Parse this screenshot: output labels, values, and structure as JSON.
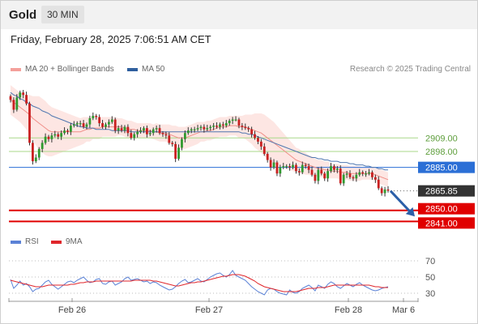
{
  "header": {
    "symbol": "Gold",
    "interval": "30 MIN",
    "datetime": "Friday, February 28, 2025 7:06:51 AM CET"
  },
  "legend": {
    "items": [
      {
        "label": "MA 20 + Bollinger Bands",
        "color": "#f4a09b"
      },
      {
        "label": "MA 50",
        "color": "#2f5f9e"
      }
    ],
    "credit": "Research © 2025 Trading Central"
  },
  "rsi_legend": {
    "items": [
      {
        "label": "RSI",
        "color": "#5b82d6"
      },
      {
        "label": "9MA",
        "color": "#e0262b"
      }
    ]
  },
  "chart_data": [
    {
      "type": "candlestick",
      "title": "",
      "xlabel": "",
      "ylabel": "",
      "ylim": [
        2830,
        2958
      ],
      "x_ticks": [
        "Feb 26",
        "Feb 27",
        "Feb 28",
        "Mar 6"
      ],
      "levels": [
        {
          "value": 2909.0,
          "label": "2909.00",
          "kind": "resistance",
          "color": "#8fca6a"
        },
        {
          "value": 2898.0,
          "label": "2898.00",
          "kind": "resistance",
          "color": "#8fca6a"
        },
        {
          "value": 2885.0,
          "label": "2885.00",
          "kind": "pivot",
          "color": "#2b6fd6"
        },
        {
          "value": 2865.85,
          "label": "2865.85",
          "kind": "last",
          "color": "#333333"
        },
        {
          "value": 2850.0,
          "label": "2850.00",
          "kind": "support",
          "color": "#e00000"
        },
        {
          "value": 2841.0,
          "label": "2841.00",
          "kind": "support",
          "color": "#e00000"
        }
      ],
      "series": [
        {
          "name": "price",
          "close": [
            2940,
            2932,
            2942,
            2946,
            2944,
            2937,
            2905,
            2890,
            2893,
            2900,
            2905,
            2910,
            2908,
            2911,
            2912,
            2910,
            2913,
            2915,
            2914,
            2919,
            2920,
            2921,
            2921,
            2918,
            2920,
            2925,
            2927,
            2926,
            2921,
            2918,
            2920,
            2922,
            2924,
            2915,
            2917,
            2915,
            2918,
            2913,
            2909,
            2912,
            2914,
            2915,
            2917,
            2912,
            2913,
            2916,
            2917,
            2913,
            2912,
            2911,
            2905,
            2904,
            2892,
            2901,
            2908,
            2913,
            2915,
            2916,
            2916,
            2917,
            2918,
            2916,
            2917,
            2918,
            2919,
            2918,
            2920,
            2919,
            2921,
            2923,
            2924,
            2924,
            2919,
            2918,
            2917,
            2916,
            2912,
            2909,
            2906,
            2902,
            2896,
            2891,
            2885,
            2889,
            2880,
            2885,
            2886,
            2886,
            2885,
            2887,
            2882,
            2881,
            2887,
            2886,
            2883,
            2879,
            2874,
            2883,
            2880,
            2876,
            2882,
            2886,
            2883,
            2884,
            2872,
            2879,
            2880,
            2877,
            2876,
            2879,
            2881,
            2880,
            2880,
            2881,
            2877,
            2875,
            2868,
            2864,
            2867,
            2866
          ]
        },
        {
          "name": "MA 20",
          "values": [
            2940,
            2938,
            2936,
            2934,
            2932,
            2930,
            2928,
            2925,
            2923,
            2921,
            2919,
            2917,
            2915,
            2914,
            2914,
            2914,
            2914,
            2914,
            2914,
            2914,
            2914,
            2914,
            2914,
            2915,
            2916,
            2916,
            2917,
            2917,
            2917,
            2918,
            2918,
            2918,
            2918,
            2918,
            2918,
            2918,
            2917,
            2916,
            2916,
            2916,
            2915,
            2915,
            2915,
            2915,
            2915,
            2914,
            2914,
            2913,
            2913,
            2913,
            2912,
            2911,
            2910,
            2909,
            2909,
            2909,
            2910,
            2911,
            2912,
            2913,
            2914,
            2914,
            2915,
            2915,
            2916,
            2917,
            2918,
            2918,
            2918,
            2919,
            2919,
            2919,
            2918,
            2918,
            2918,
            2917,
            2916,
            2915,
            2914,
            2913,
            2911,
            2909,
            2907,
            2905,
            2903,
            2901,
            2899,
            2897,
            2895,
            2893,
            2891,
            2890,
            2889,
            2888,
            2887,
            2886,
            2885,
            2884,
            2884,
            2883,
            2883,
            2882,
            2882,
            2882,
            2881,
            2881,
            2881,
            2880,
            2880,
            2880,
            2880,
            2880,
            2880,
            2880,
            2880,
            2879,
            2878,
            2877,
            2876,
            2875
          ]
        },
        {
          "name": "MA 50",
          "values": [
            2946,
            2944,
            2943,
            2941,
            2940,
            2938,
            2937,
            2935,
            2934,
            2933,
            2931,
            2930,
            2929,
            2927,
            2926,
            2925,
            2924,
            2923,
            2922,
            2921,
            2920,
            2919,
            2918,
            2918,
            2917,
            2917,
            2917,
            2916,
            2916,
            2916,
            2916,
            2916,
            2915,
            2915,
            2915,
            2915,
            2915,
            2915,
            2914,
            2914,
            2914,
            2914,
            2914,
            2914,
            2914,
            2914,
            2914,
            2914,
            2914,
            2914,
            2914,
            2914,
            2914,
            2914,
            2914,
            2914,
            2914,
            2914,
            2914,
            2914,
            2914,
            2914,
            2914,
            2914,
            2914,
            2914,
            2914,
            2914,
            2914,
            2914,
            2914,
            2914,
            2914,
            2913,
            2913,
            2912,
            2912,
            2911,
            2910,
            2909,
            2908,
            2907,
            2906,
            2905,
            2904,
            2903,
            2902,
            2901,
            2900,
            2899,
            2898,
            2897,
            2896,
            2895,
            2894,
            2893,
            2893,
            2892,
            2892,
            2891,
            2891,
            2890,
            2890,
            2890,
            2889,
            2889,
            2889,
            2888,
            2888,
            2887,
            2887,
            2887,
            2886,
            2886,
            2885,
            2885,
            2884,
            2884,
            2883,
            2883
          ]
        }
      ],
      "bollinger_width": [
        12,
        12,
        12,
        12,
        13,
        14,
        16,
        18,
        20,
        22,
        22,
        22,
        21,
        20,
        19,
        18,
        17,
        16,
        15,
        14,
        13,
        12,
        11,
        11,
        10,
        10,
        9,
        9,
        9,
        8,
        8,
        8,
        8,
        8,
        7,
        7,
        7,
        7,
        7,
        6,
        6,
        6,
        6,
        6,
        6,
        6,
        7,
        7,
        7,
        7,
        8,
        8,
        9,
        9,
        9,
        9,
        9,
        9,
        9,
        9,
        8,
        8,
        8,
        8,
        8,
        8,
        8,
        8,
        8,
        8,
        8,
        8,
        9,
        9,
        10,
        11,
        12,
        14,
        15,
        16,
        17,
        17,
        17,
        17,
        16,
        15,
        14,
        13,
        12,
        11,
        10,
        10,
        9,
        9,
        8,
        8,
        7,
        7,
        7,
        7,
        7,
        6,
        6,
        6,
        6,
        6,
        6,
        6,
        6,
        6,
        6,
        5,
        5,
        5,
        5,
        5,
        6,
        6,
        6,
        6
      ],
      "forecast": {
        "from": 2865.85,
        "to": 2845.0
      }
    },
    {
      "type": "line",
      "title": "",
      "ylim": [
        22,
        75
      ],
      "y_ticks": [
        70,
        50,
        30
      ],
      "series": [
        {
          "name": "RSI",
          "values": [
            47,
            36,
            40,
            45,
            40,
            42,
            38,
            32,
            35,
            36,
            40,
            44,
            46,
            41,
            38,
            35,
            38,
            41,
            44,
            45,
            43,
            46,
            48,
            50,
            46,
            43,
            44,
            47,
            48,
            42,
            41,
            44,
            45,
            40,
            42,
            44,
            48,
            50,
            46,
            47,
            48,
            46,
            44,
            45,
            42,
            44,
            43,
            40,
            38,
            36,
            34,
            35,
            38,
            42,
            45,
            47,
            43,
            44,
            46,
            48,
            45,
            44,
            47,
            50,
            52,
            54,
            55,
            52,
            50,
            53,
            58,
            52,
            50,
            48,
            46,
            42,
            38,
            35,
            32,
            30,
            28,
            34,
            36,
            35,
            32,
            30,
            29,
            28,
            34,
            31,
            30,
            32,
            36,
            38,
            40,
            37,
            33,
            40,
            38,
            36,
            41,
            44,
            42,
            38,
            36,
            39,
            42,
            40,
            38,
            41,
            43,
            40,
            38,
            36,
            34,
            33,
            34,
            36,
            37,
            38
          ]
        },
        {
          "name": "9MA",
          "values": [
            46,
            45,
            44,
            43,
            42,
            41,
            40,
            39,
            38,
            38,
            38,
            39,
            40,
            40,
            40,
            40,
            40,
            40,
            40,
            41,
            41,
            42,
            43,
            43,
            44,
            44,
            44,
            45,
            45,
            45,
            45,
            45,
            45,
            45,
            45,
            45,
            45,
            45,
            45,
            46,
            46,
            46,
            46,
            46,
            46,
            45,
            45,
            44,
            43,
            42,
            41,
            40,
            39,
            39,
            40,
            41,
            42,
            43,
            43,
            44,
            44,
            45,
            46,
            47,
            48,
            49,
            50,
            51,
            51,
            52,
            53,
            53,
            53,
            52,
            51,
            49,
            47,
            45,
            42,
            40,
            38,
            37,
            36,
            35,
            34,
            33,
            32,
            32,
            32,
            32,
            32,
            33,
            34,
            35,
            36,
            36,
            36,
            37,
            37,
            37,
            38,
            39,
            40,
            40,
            40,
            40,
            40,
            40,
            40,
            40,
            40,
            40,
            40,
            40,
            39,
            38,
            38,
            37,
            37,
            37
          ]
        }
      ]
    }
  ]
}
